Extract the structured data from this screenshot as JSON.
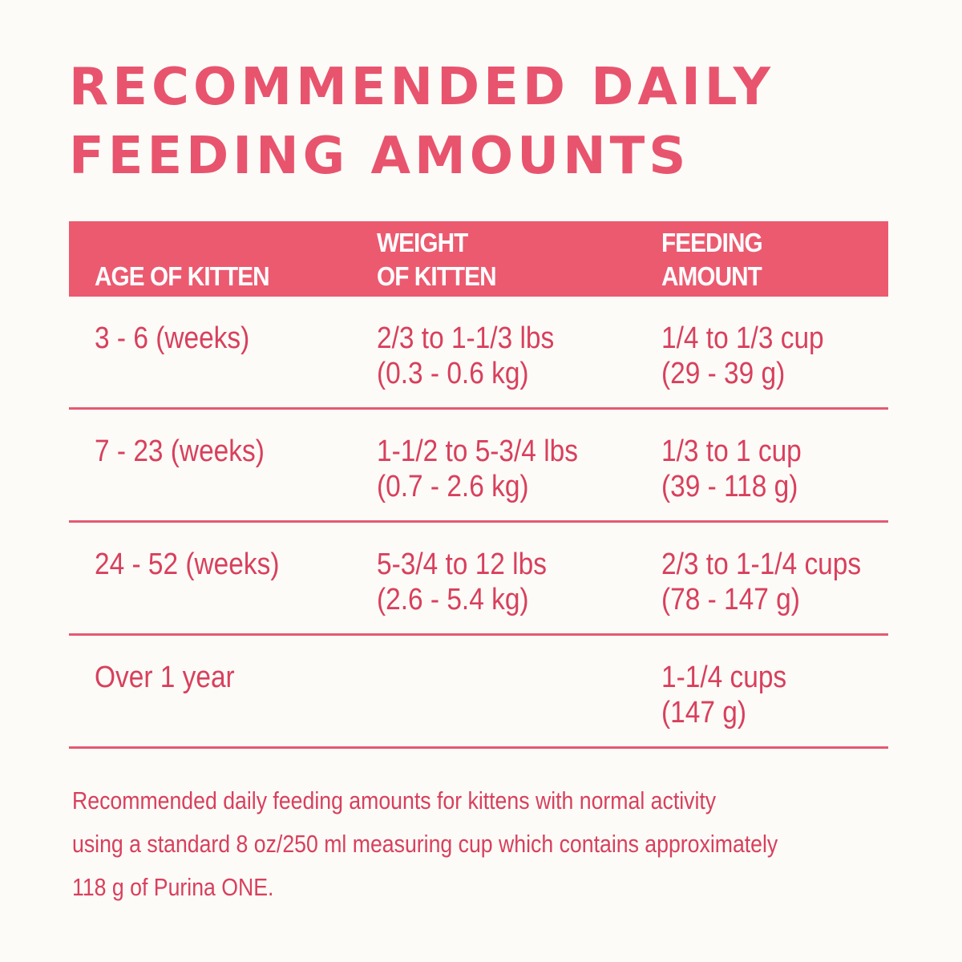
{
  "title": {
    "line1": "RECOMMENDED DAILY",
    "line2": "FEEDING AMOUNTS"
  },
  "table": {
    "headers": [
      {
        "line1": "",
        "line2": "AGE OF KITTEN"
      },
      {
        "line1": "WEIGHT",
        "line2": "OF KITTEN"
      },
      {
        "line1": "FEEDING",
        "line2": "AMOUNT"
      }
    ],
    "rows": [
      {
        "age": "3 - 6 (weeks)",
        "weight_line1": "2/3 to 1-1/3 lbs",
        "weight_line2": "(0.3 - 0.6 kg)",
        "amount_line1": "1/4 to 1/3 cup",
        "amount_line2": "(29 - 39 g)"
      },
      {
        "age": "7 - 23 (weeks)",
        "weight_line1": "1-1/2 to 5-3/4 lbs",
        "weight_line2": "(0.7 - 2.6 kg)",
        "amount_line1": "1/3 to 1 cup",
        "amount_line2": "(39 - 118 g)"
      },
      {
        "age": "24 - 52 (weeks)",
        "weight_line1": "5-3/4 to 12 lbs",
        "weight_line2": "(2.6 - 5.4 kg)",
        "amount_line1": "2/3 to 1-1/4 cups",
        "amount_line2": "(78 - 147 g)"
      },
      {
        "age": "Over 1 year",
        "weight_line1": "",
        "weight_line2": "",
        "amount_line1": "1-1/4 cups",
        "amount_line2": "(147 g)"
      }
    ]
  },
  "note": {
    "line1": "Recommended daily feeding amounts for kittens with normal activity",
    "line2": "using a standard 8 oz/250 ml measuring cup which contains approximately",
    "line3": "118 g of Purina ONE."
  },
  "colors": {
    "accent": "#e8546d",
    "header_bg": "#ec5a70",
    "text": "#d8405c",
    "background": "#fdfbf8"
  }
}
